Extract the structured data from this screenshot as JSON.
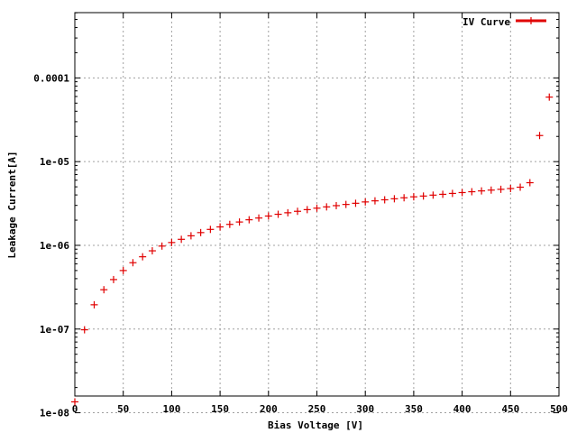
{
  "chart_data": {
    "type": "scatter",
    "title": "",
    "xlabel": "Bias Voltage [V]",
    "ylabel": "Leakage Current[A]",
    "xlim": [
      0,
      500
    ],
    "ylim_log10": [
      -8.85,
      -6.85
    ],
    "yscale": "log",
    "grid": true,
    "legend_position": "top-right",
    "x_ticks": [
      0,
      50,
      100,
      150,
      200,
      250,
      300,
      350,
      400,
      450,
      500
    ],
    "x_tick_labels": [
      "0",
      "50",
      "100",
      "150",
      "200",
      "250",
      "300",
      "350",
      "400",
      "450",
      "500"
    ],
    "y_ticks": [
      1e-08,
      1e-07,
      1e-06,
      1e-05,
      0.0001
    ],
    "y_tick_labels": [
      "1e-08",
      "1e-07",
      "1e-06",
      "1e-05",
      "0.0001"
    ],
    "series": [
      {
        "name": "IV Curve",
        "color": "#e00000",
        "marker": "plus",
        "x": [
          0,
          10,
          20,
          30,
          40,
          50,
          60,
          70,
          80,
          90,
          100,
          110,
          120,
          130,
          140,
          150,
          160,
          170,
          180,
          190,
          200,
          210,
          220,
          230,
          240,
          250,
          260,
          270,
          280,
          290,
          300,
          310,
          320,
          330,
          340,
          350,
          360,
          370,
          380,
          390,
          400,
          410,
          420,
          430,
          440,
          450,
          460,
          470,
          480,
          490
        ],
        "y": [
          1.35e-08,
          9.8e-08,
          1.95e-07,
          2.95e-07,
          3.9e-07,
          5e-07,
          6.2e-07,
          7.3e-07,
          8.6e-07,
          9.8e-07,
          1.08e-06,
          1.18e-06,
          1.3e-06,
          1.42e-06,
          1.55e-06,
          1.66e-06,
          1.78e-06,
          1.9e-06,
          2.02e-06,
          2.12e-06,
          2.24e-06,
          2.35e-06,
          2.45e-06,
          2.55e-06,
          2.67e-06,
          2.78e-06,
          2.88e-06,
          2.98e-06,
          3.08e-06,
          3.18e-06,
          3.3e-06,
          3.4e-06,
          3.5e-06,
          3.6e-06,
          3.7e-06,
          3.8e-06,
          3.88e-06,
          3.98e-06,
          4.07e-06,
          4.17e-06,
          4.27e-06,
          4.37e-06,
          4.47e-06,
          4.57e-06,
          4.67e-06,
          4.77e-06,
          4.95e-06,
          5.6e-06,
          2.05e-05,
          5.9e-05
        ]
      }
    ]
  }
}
